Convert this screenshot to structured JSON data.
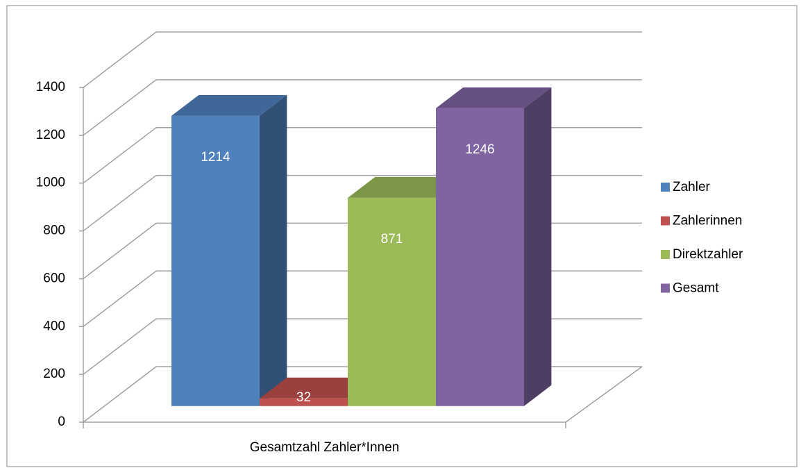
{
  "chart_data": {
    "type": "bar3d",
    "categories": [
      "Gesamtzahl Zahler*Innen"
    ],
    "series": [
      {
        "name": "Zahler",
        "color": "#4f81bd",
        "values": [
          1214
        ]
      },
      {
        "name": "Zahlerinnen",
        "color": "#c0504d",
        "values": [
          32
        ]
      },
      {
        "name": "Direktzahler",
        "color": "#9bbb59",
        "values": [
          871
        ]
      },
      {
        "name": "Gesamt",
        "color": "#8064a2",
        "values": [
          1246
        ]
      }
    ],
    "ylim": [
      0,
      1400
    ],
    "yticks": [
      0,
      200,
      400,
      600,
      800,
      1000,
      1200,
      1400
    ],
    "grid": true,
    "legend": "right"
  }
}
